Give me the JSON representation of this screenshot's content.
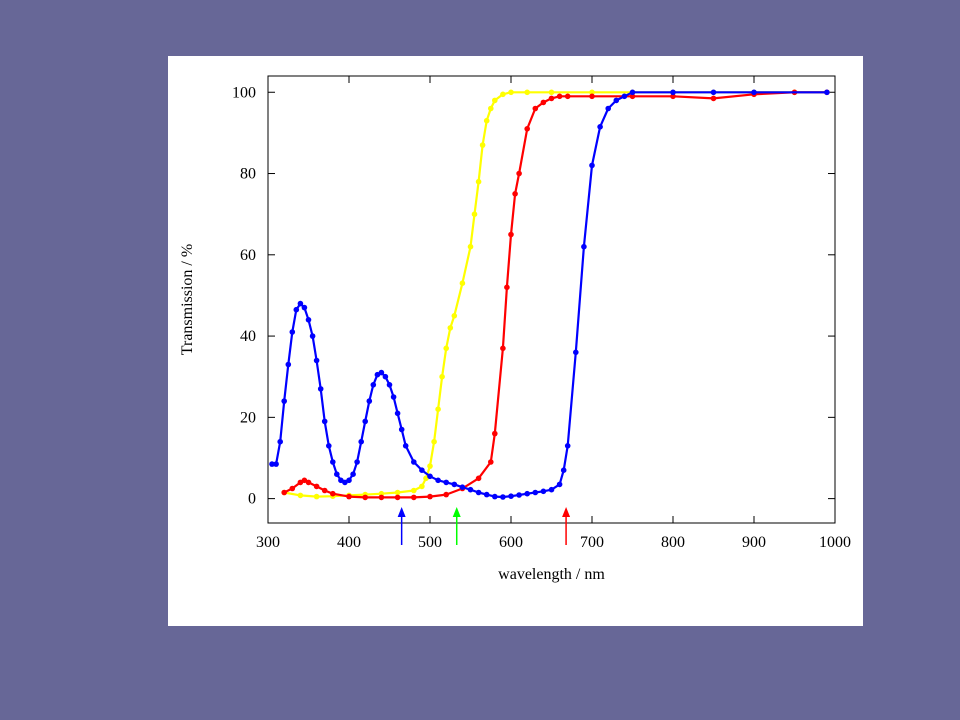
{
  "colors": {
    "background": "#676797",
    "panel": "#ffffff",
    "axes": "#000000"
  },
  "chart_data": {
    "type": "line",
    "title": "",
    "xlabel": "wavelength / nm",
    "ylabel": "Transmission / %",
    "xlim": [
      300,
      1000
    ],
    "ylim": [
      -6,
      104
    ],
    "xticks": [
      300,
      400,
      500,
      600,
      700,
      800,
      900,
      1000
    ],
    "yticks": [
      0,
      20,
      40,
      60,
      80,
      100
    ],
    "grid": false,
    "legend": "none",
    "series": [
      {
        "color": "#ffff00",
        "points": [
          [
            320,
            1.5
          ],
          [
            340,
            0.8
          ],
          [
            360,
            0.5
          ],
          [
            380,
            0.6
          ],
          [
            400,
            0.8
          ],
          [
            420,
            1.0
          ],
          [
            440,
            1.2
          ],
          [
            460,
            1.5
          ],
          [
            480,
            2.0
          ],
          [
            490,
            3
          ],
          [
            495,
            5
          ],
          [
            500,
            8
          ],
          [
            505,
            14
          ],
          [
            510,
            22
          ],
          [
            515,
            30
          ],
          [
            520,
            37
          ],
          [
            525,
            42
          ],
          [
            530,
            45
          ],
          [
            540,
            53
          ],
          [
            550,
            62
          ],
          [
            555,
            70
          ],
          [
            560,
            78
          ],
          [
            565,
            87
          ],
          [
            570,
            93
          ],
          [
            575,
            96
          ],
          [
            580,
            98
          ],
          [
            590,
            99.5
          ],
          [
            600,
            100
          ],
          [
            620,
            100
          ],
          [
            650,
            100
          ],
          [
            700,
            100
          ],
          [
            750,
            100
          ],
          [
            800,
            100
          ],
          [
            850,
            100
          ],
          [
            900,
            100
          ],
          [
            950,
            100
          ],
          [
            990,
            100
          ]
        ]
      },
      {
        "color": "#ff0000",
        "points": [
          [
            320,
            1.5
          ],
          [
            330,
            2.5
          ],
          [
            340,
            4
          ],
          [
            345,
            4.5
          ],
          [
            350,
            4
          ],
          [
            360,
            3
          ],
          [
            370,
            2
          ],
          [
            380,
            1.2
          ],
          [
            400,
            0.5
          ],
          [
            420,
            0.3
          ],
          [
            440,
            0.3
          ],
          [
            460,
            0.3
          ],
          [
            480,
            0.3
          ],
          [
            500,
            0.5
          ],
          [
            520,
            1
          ],
          [
            540,
            2.5
          ],
          [
            560,
            5
          ],
          [
            575,
            9
          ],
          [
            580,
            16
          ],
          [
            590,
            37
          ],
          [
            595,
            52
          ],
          [
            600,
            65
          ],
          [
            605,
            75
          ],
          [
            610,
            80
          ],
          [
            620,
            91
          ],
          [
            630,
            96
          ],
          [
            640,
            97.5
          ],
          [
            650,
            98.5
          ],
          [
            660,
            99
          ],
          [
            670,
            99
          ],
          [
            700,
            99
          ],
          [
            750,
            99
          ],
          [
            800,
            99
          ],
          [
            850,
            98.5
          ],
          [
            900,
            99.5
          ],
          [
            950,
            100
          ],
          [
            990,
            100
          ]
        ]
      },
      {
        "color": "#0000ff",
        "points": [
          [
            305,
            8.5
          ],
          [
            310,
            8.5
          ],
          [
            315,
            14
          ],
          [
            320,
            24
          ],
          [
            325,
            33
          ],
          [
            330,
            41
          ],
          [
            335,
            46.5
          ],
          [
            340,
            48
          ],
          [
            345,
            47
          ],
          [
            350,
            44
          ],
          [
            355,
            40
          ],
          [
            360,
            34
          ],
          [
            365,
            27
          ],
          [
            370,
            19
          ],
          [
            375,
            13
          ],
          [
            380,
            9
          ],
          [
            385,
            6
          ],
          [
            390,
            4.5
          ],
          [
            395,
            4
          ],
          [
            400,
            4.5
          ],
          [
            405,
            6
          ],
          [
            410,
            9
          ],
          [
            415,
            14
          ],
          [
            420,
            19
          ],
          [
            425,
            24
          ],
          [
            430,
            28
          ],
          [
            435,
            30.5
          ],
          [
            440,
            31
          ],
          [
            445,
            30
          ],
          [
            450,
            28
          ],
          [
            455,
            25
          ],
          [
            460,
            21
          ],
          [
            465,
            17
          ],
          [
            470,
            13
          ],
          [
            480,
            9
          ],
          [
            490,
            7
          ],
          [
            500,
            5.5
          ],
          [
            510,
            4.5
          ],
          [
            520,
            4
          ],
          [
            530,
            3.5
          ],
          [
            540,
            2.8
          ],
          [
            550,
            2.2
          ],
          [
            560,
            1.5
          ],
          [
            570,
            1
          ],
          [
            580,
            0.5
          ],
          [
            590,
            0.4
          ],
          [
            600,
            0.6
          ],
          [
            610,
            0.9
          ],
          [
            620,
            1.2
          ],
          [
            630,
            1.5
          ],
          [
            640,
            1.8
          ],
          [
            650,
            2.2
          ],
          [
            660,
            3.5
          ],
          [
            665,
            7
          ],
          [
            670,
            13
          ],
          [
            680,
            36
          ],
          [
            690,
            62
          ],
          [
            700,
            82
          ],
          [
            710,
            91.5
          ],
          [
            720,
            96
          ],
          [
            730,
            98
          ],
          [
            740,
            99
          ],
          [
            750,
            100
          ],
          [
            800,
            100
          ],
          [
            850,
            100
          ],
          [
            900,
            100
          ],
          [
            990,
            100
          ]
        ]
      }
    ],
    "arrows": [
      {
        "x": 465,
        "color": "#0000ff"
      },
      {
        "x": 533,
        "color": "#00ff00"
      },
      {
        "x": 668,
        "color": "#ff0000"
      }
    ]
  }
}
